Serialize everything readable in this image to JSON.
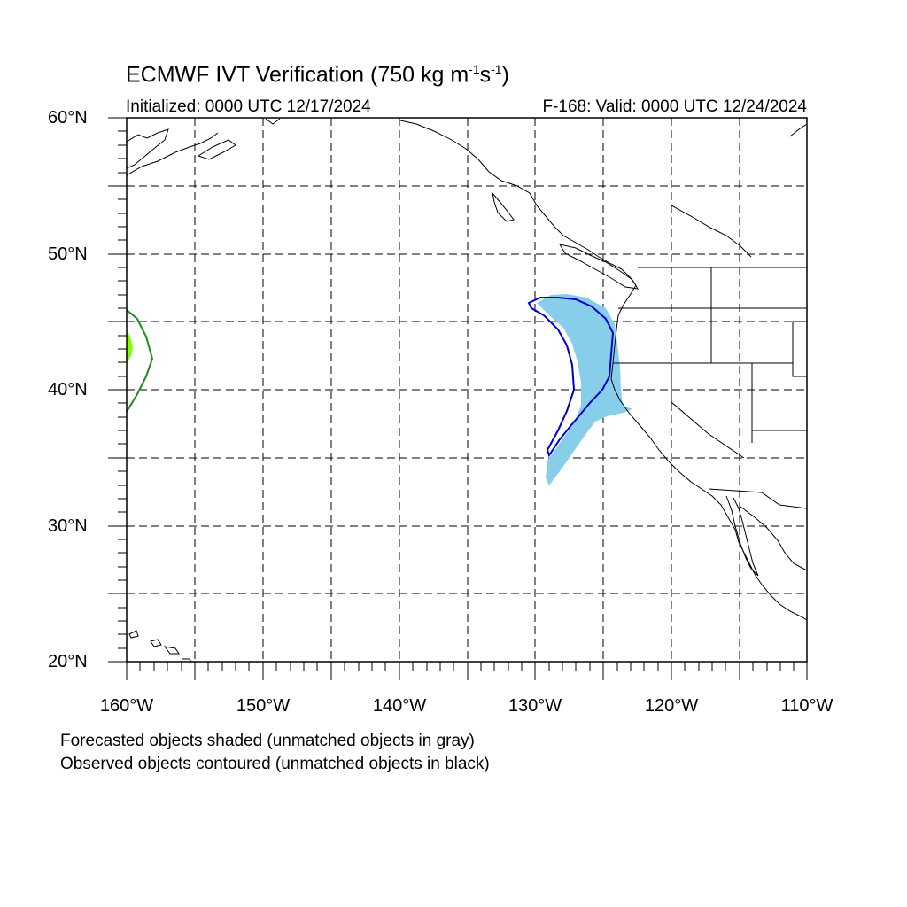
{
  "title": {
    "main": "ECMWF IVT Verification (750 kg m",
    "exp1": "-1",
    "mid": "s",
    "exp2": "-1",
    "close": ")"
  },
  "subtitle": {
    "initialized": "Initialized: 0000 UTC 12/17/2024",
    "valid": "F-168: Valid: 0000 UTC 12/24/2024"
  },
  "axes": {
    "lat_labels": [
      "60°N",
      "50°N",
      "40°N",
      "30°N",
      "20°N"
    ],
    "lon_labels": [
      "160°W",
      "150°W",
      "140°W",
      "130°W",
      "120°W",
      "110°W"
    ],
    "lat_range": [
      20,
      60
    ],
    "lon_range": [
      -160,
      -110
    ],
    "grid": true
  },
  "legend": {
    "line1": "Forecasted objects shaded (unmatched objects in gray)",
    "line2": "Observed objects contoured (unmatched objects in black)"
  },
  "colors": {
    "forecast_fill": "#87ceeb",
    "observed_contour": "#0000cd",
    "unmatched_fill": "#7fff00",
    "unmatched_contour": "#228b22",
    "coast": "#000000"
  }
}
